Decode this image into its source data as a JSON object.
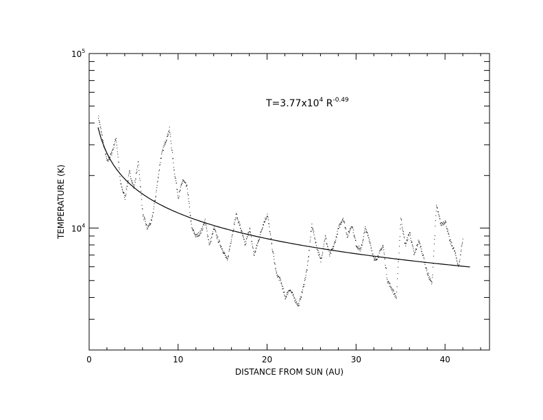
{
  "chart_data": {
    "type": "scatter",
    "title": "",
    "xlabel": "DISTANCE FROM SUN (AU)",
    "ylabel": "TEMPERATURE (K)",
    "xlim": [
      0,
      45
    ],
    "ylim": [
      2000,
      100000
    ],
    "y_scale": "log",
    "grid": false,
    "legend": "none",
    "x_ticks": [
      {
        "value": 0,
        "label": "0"
      },
      {
        "value": 10,
        "label": "10"
      },
      {
        "value": 20,
        "label": "20"
      },
      {
        "value": 30,
        "label": "30"
      },
      {
        "value": 40,
        "label": "40"
      }
    ],
    "y_ticks": [
      {
        "value": 10000,
        "base": "10",
        "exp": "4"
      },
      {
        "value": 100000,
        "base": "10",
        "exp": "5"
      }
    ],
    "annotation": {
      "prefix": "T=3.77x10",
      "exp1": "4",
      "middle": " R",
      "exp2": "-0.49"
    },
    "fit": {
      "coef": 37700,
      "power": -0.49,
      "x_start": 1.0,
      "x_end": 42.8
    },
    "series": [
      {
        "x": [
          1.0,
          1.5,
          2.0,
          2.5,
          3.0,
          3.5,
          4.0,
          4.5,
          5.0,
          5.5,
          6.0,
          6.5,
          7.0,
          7.5,
          8.0,
          8.5,
          9.0,
          9.5,
          10.0,
          10.5,
          11.0,
          11.5,
          12.0,
          12.5,
          13.0,
          13.5,
          14.0,
          14.5,
          15.0,
          15.5,
          16.0,
          16.5,
          17.0,
          17.5,
          18.0,
          18.5,
          19.0,
          19.5,
          20.0,
          20.5,
          21.0,
          21.5,
          22.0,
          22.5,
          23.0,
          23.5,
          24.0,
          24.5,
          25.0,
          25.5,
          26.0,
          26.5,
          27.0,
          27.5,
          28.0,
          28.5,
          29.0,
          29.5,
          30.0,
          30.5,
          31.0,
          31.5,
          32.0,
          32.5,
          33.0,
          33.5,
          34.0,
          34.5,
          35.0,
          35.5,
          36.0,
          36.5,
          37.0,
          37.5,
          38.0,
          38.5,
          39.0,
          39.5,
          40.0,
          40.5,
          41.0,
          41.5,
          42.0
        ],
        "y": [
          44000,
          32000,
          24000,
          27000,
          33000,
          18000,
          15000,
          21000,
          17000,
          24000,
          12000,
          10000,
          11000,
          16000,
          25000,
          31000,
          37000,
          22000,
          15000,
          19000,
          17000,
          10000,
          9000,
          9500,
          11000,
          8000,
          10000,
          8500,
          7500,
          6500,
          9000,
          12000,
          10000,
          8000,
          10000,
          7000,
          8500,
          10500,
          12000,
          8000,
          5500,
          5000,
          4000,
          4500,
          4000,
          3600,
          4500,
          6000,
          10500,
          8000,
          6500,
          9000,
          7000,
          8000,
          10000,
          11500,
          9000,
          10500,
          8000,
          7500,
          10000,
          8500,
          6500,
          7000,
          8000,
          5000,
          4500,
          4000,
          11500,
          8000,
          9500,
          7000,
          8500,
          7000,
          5500,
          4800,
          13500,
          10500,
          11000,
          8500,
          7500,
          6000,
          9000
        ]
      }
    ]
  }
}
